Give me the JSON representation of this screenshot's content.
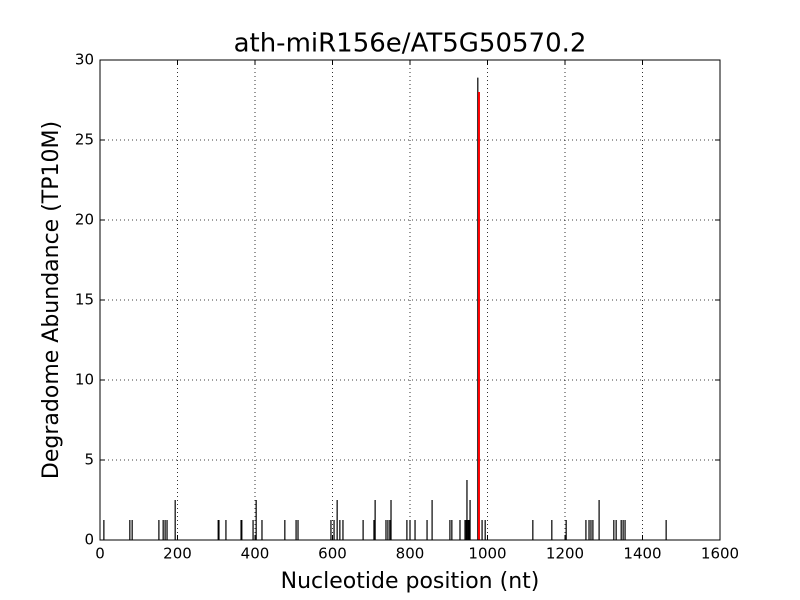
{
  "chart_data": {
    "type": "vlines",
    "title": "ath-miR156e/AT5G50570.2",
    "x_label": "Nucleotide position (nt)",
    "y_label": "Degradome Abundance (TP10M)",
    "xlim": [
      0,
      1600
    ],
    "xticks": [
      0,
      200,
      400,
      600,
      800,
      1000,
      1200,
      1400,
      1600
    ],
    "ylim": [
      0,
      30
    ],
    "yticks": [
      0,
      5,
      10,
      15,
      20,
      25,
      30
    ],
    "grid": true,
    "series": [
      {
        "color": "#000000",
        "x": [
          10,
          77,
          83,
          152,
          163,
          168,
          173,
          194,
          305,
          307,
          325,
          364,
          366,
          395,
          403,
          418,
          477,
          506,
          511,
          596,
          604,
          612,
          619,
          627,
          679,
          707,
          710,
          738,
          743,
          748,
          751,
          792,
          800,
          813,
          844,
          857,
          903,
          908,
          929,
          942,
          945,
          947,
          950,
          952,
          955,
          975,
          986,
          994,
          1117,
          1166,
          1203,
          1254,
          1262,
          1267,
          1272,
          1288,
          1326,
          1332,
          1345,
          1350,
          1355,
          1461
        ],
        "values": [
          1.25,
          1.25,
          1.25,
          1.25,
          1.25,
          1.25,
          1.25,
          2.5,
          1.25,
          1.25,
          1.25,
          1.25,
          1.25,
          1.25,
          2.5,
          1.25,
          1.25,
          1.25,
          1.25,
          1.25,
          1.25,
          2.5,
          1.25,
          1.25,
          1.25,
          1.25,
          2.5,
          1.25,
          1.25,
          1.25,
          2.5,
          1.25,
          1.25,
          1.25,
          1.25,
          2.5,
          1.25,
          1.25,
          1.25,
          1.25,
          1.25,
          3.75,
          1.25,
          1.25,
          2.5,
          28.9,
          1.25,
          1.25,
          1.25,
          1.25,
          1.25,
          1.25,
          1.25,
          1.25,
          1.25,
          2.5,
          1.25,
          1.25,
          1.25,
          1.25,
          1.25,
          1.25
        ]
      },
      {
        "color": "#ff0000",
        "x": [
          978
        ],
        "values": [
          28
        ]
      }
    ]
  }
}
